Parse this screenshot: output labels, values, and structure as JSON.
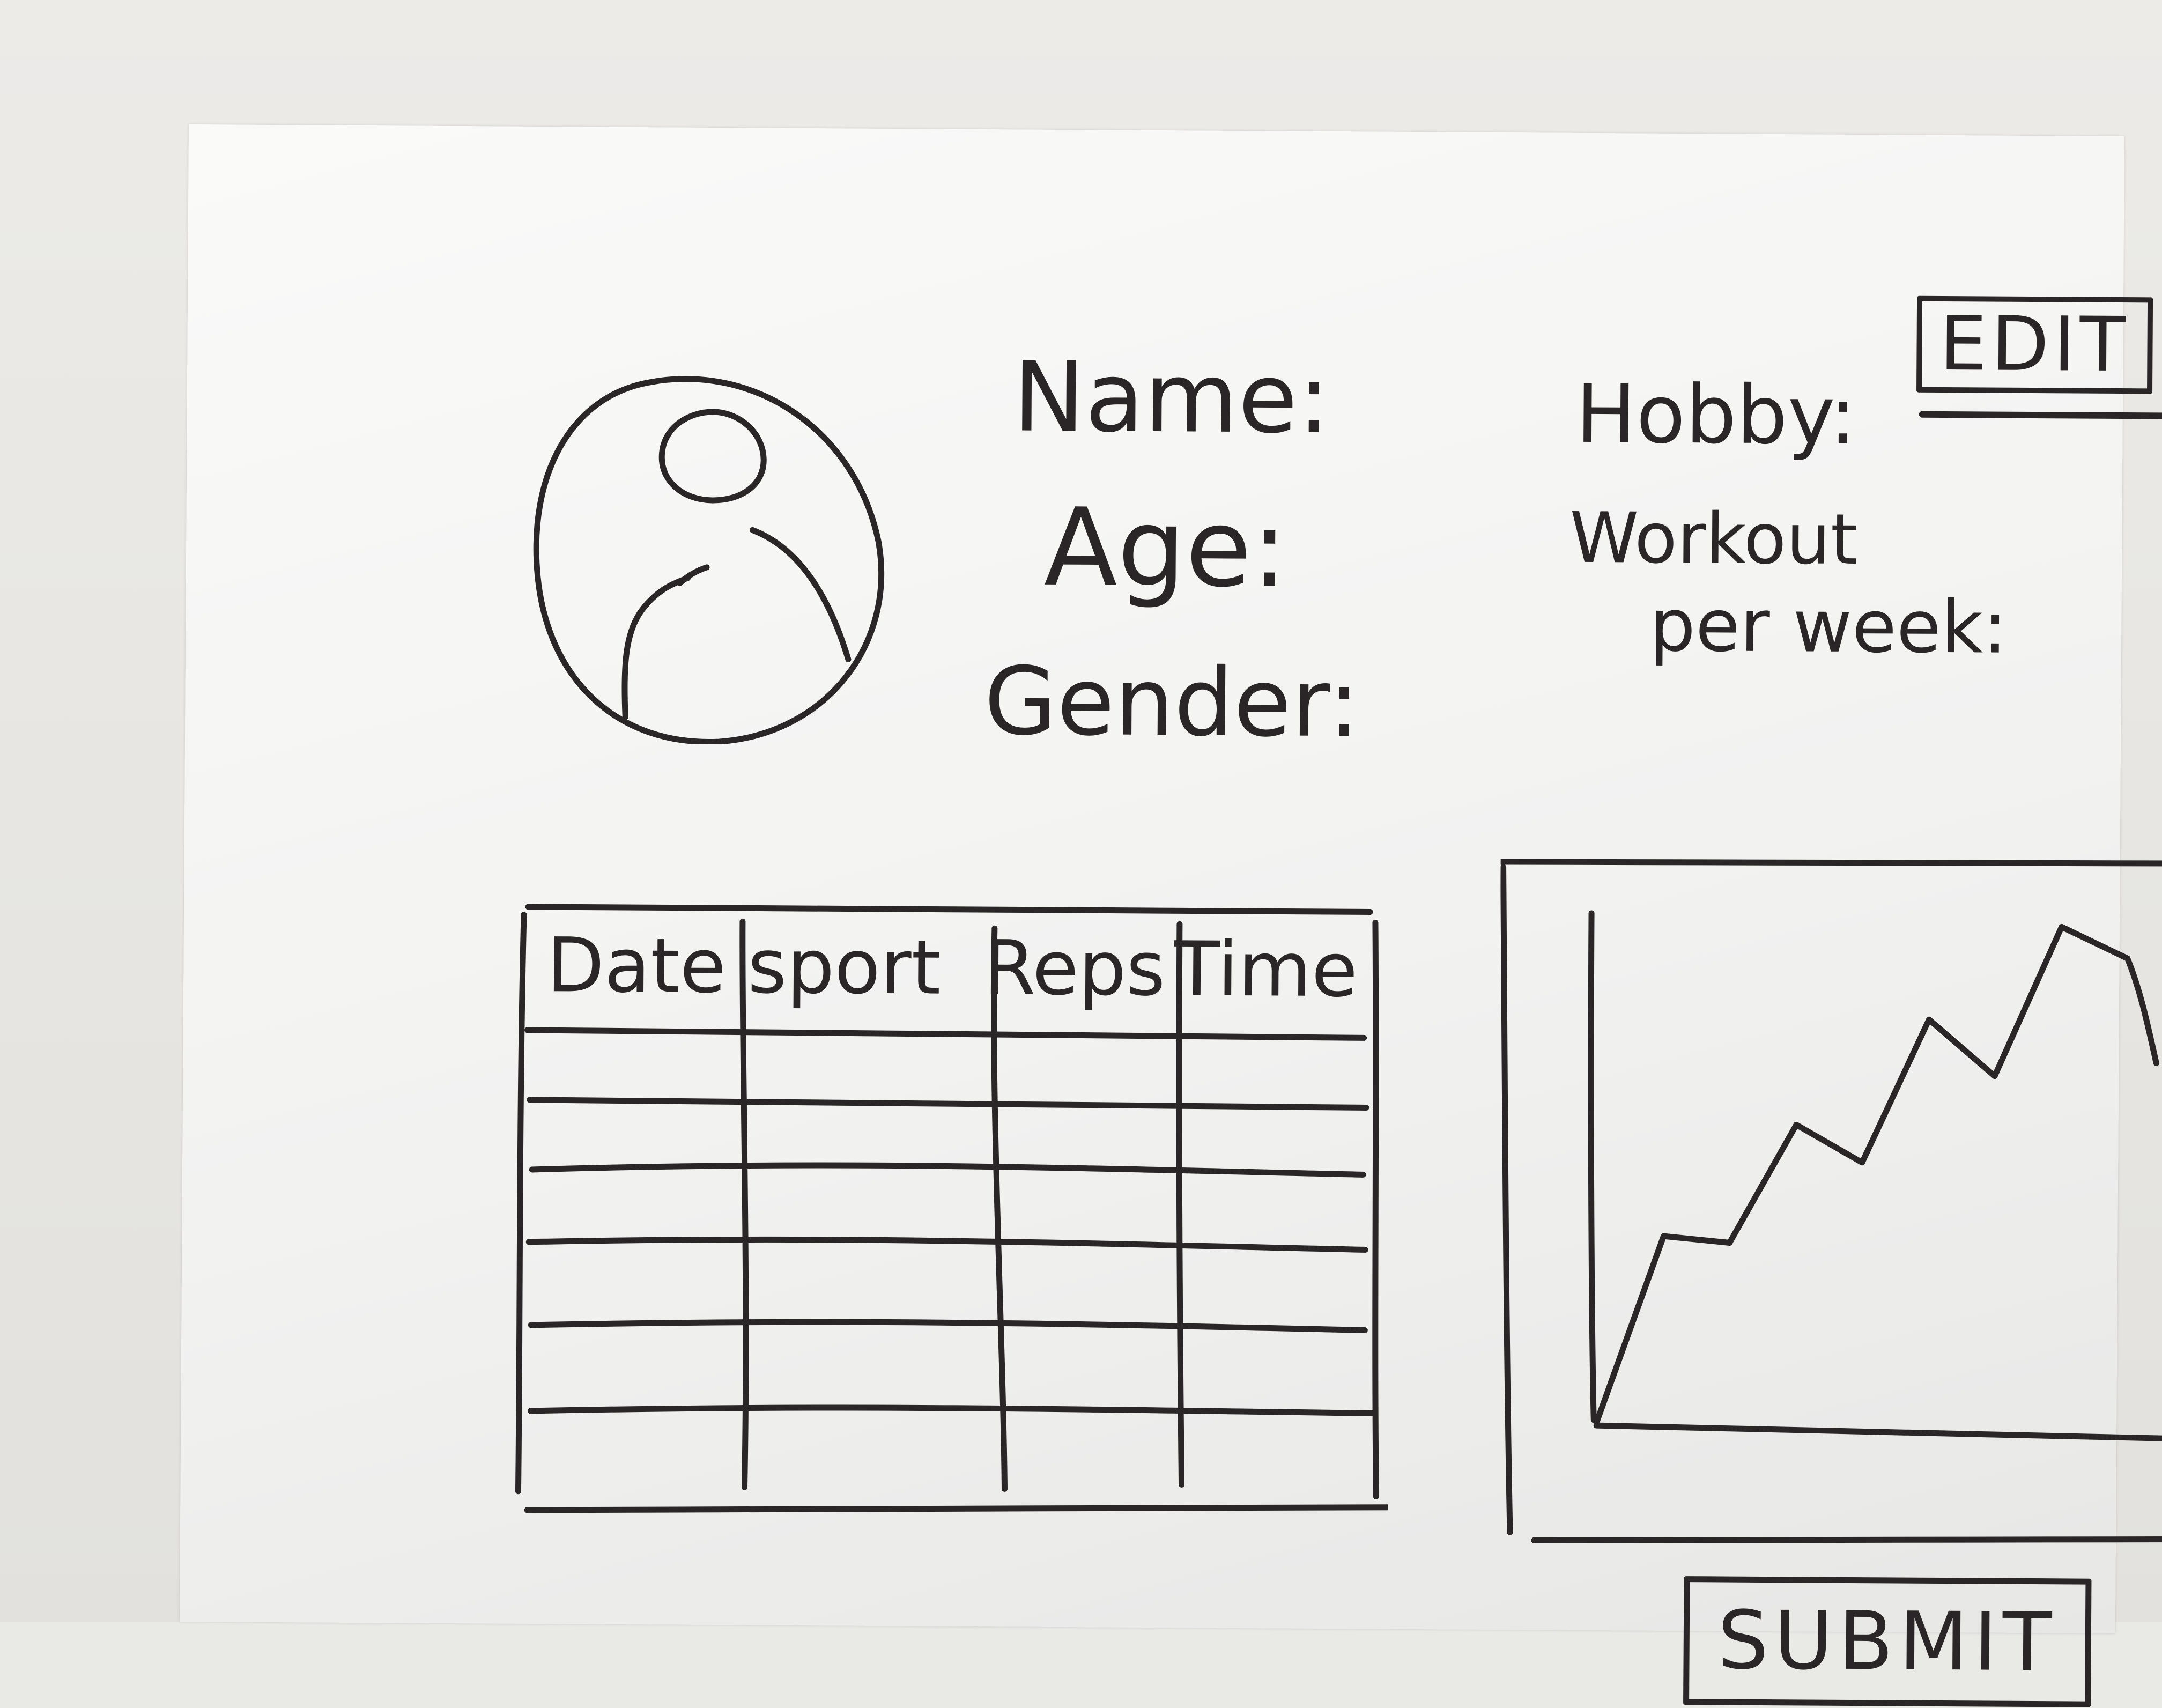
{
  "profile": {
    "name_label": "Name:",
    "age_label": "Age:",
    "gender_label": "Gender:",
    "hobby_label": "Hobby:",
    "workout_label": "Workout",
    "per_week_label": "per week:"
  },
  "actions": {
    "edit_label": "EDIT",
    "submit_label": "SUBMIT"
  },
  "icons": {
    "avatar": "user-avatar-icon"
  },
  "workout_table": {
    "columns": [
      "Date",
      "sport",
      "Reps",
      "Time"
    ],
    "rows": [
      [
        "",
        "",
        "",
        ""
      ],
      [
        "",
        "",
        "",
        ""
      ],
      [
        "",
        "",
        "",
        ""
      ],
      [
        "",
        "",
        "",
        ""
      ],
      [
        "",
        "",
        "",
        ""
      ],
      [
        "",
        "",
        "",
        ""
      ]
    ]
  },
  "chart_data": {
    "type": "line",
    "title": "",
    "xlabel": "",
    "ylabel": "",
    "grid": false,
    "series": [
      {
        "values": [
          0,
          3,
          2.9,
          4.8,
          4.2,
          6.5,
          5.6,
          8,
          7.5
        ]
      }
    ]
  },
  "colors": {
    "ink": "#2a2526",
    "paper": "#f7f7f6",
    "background": "#e9e9e6"
  }
}
